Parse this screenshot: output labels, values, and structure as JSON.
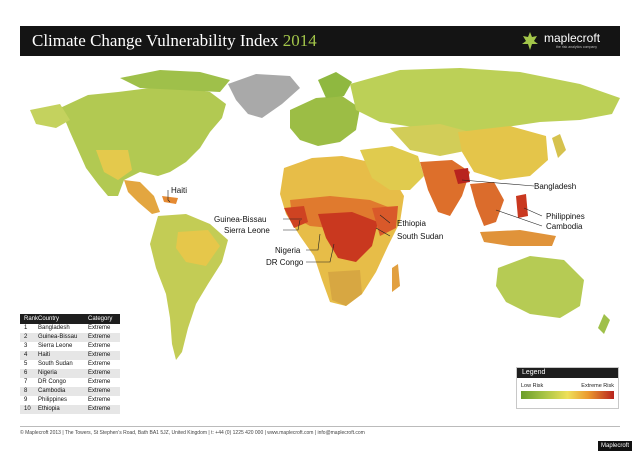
{
  "header": {
    "title_main": "Climate Change Vulnerability Index",
    "title_year": "2014",
    "brand": "maplecroft",
    "brand_tag": "the risk analytics company"
  },
  "map_labels": [
    {
      "id": "haiti",
      "text": "Haiti"
    },
    {
      "id": "guinea-bissau",
      "text": "Guinea-Bissau"
    },
    {
      "id": "sierra-leone",
      "text": "Sierra Leone"
    },
    {
      "id": "nigeria",
      "text": "Nigeria"
    },
    {
      "id": "dr-congo",
      "text": "DR Congo"
    },
    {
      "id": "ethiopia",
      "text": "Ethiopia"
    },
    {
      "id": "south-sudan",
      "text": "South Sudan"
    },
    {
      "id": "bangladesh",
      "text": "Bangladesh"
    },
    {
      "id": "philippines",
      "text": "Philippines"
    },
    {
      "id": "cambodia",
      "text": "Cambodia"
    }
  ],
  "table": {
    "headers": [
      "Rank",
      "Country",
      "Category"
    ],
    "rows": [
      [
        "1",
        "Bangladesh",
        "Extreme"
      ],
      [
        "2",
        "Guinea-Bissau",
        "Extreme"
      ],
      [
        "3",
        "Sierra Leone",
        "Extreme"
      ],
      [
        "4",
        "Haiti",
        "Extreme"
      ],
      [
        "5",
        "South Sudan",
        "Extreme"
      ],
      [
        "6",
        "Nigeria",
        "Extreme"
      ],
      [
        "7",
        "DR Congo",
        "Extreme"
      ],
      [
        "8",
        "Cambodia",
        "Extreme"
      ],
      [
        "9",
        "Philippines",
        "Extreme"
      ],
      [
        "10",
        "Ethiopia",
        "Extreme"
      ]
    ]
  },
  "legend": {
    "title": "Legend",
    "low": "Low Risk",
    "high": "Extreme Risk",
    "colors": [
      "#6a9d2a",
      "#a7c446",
      "#eee05a",
      "#eb9a2f",
      "#b8231e"
    ]
  },
  "footer": "© Maplecroft 2013 | The Towers, St Stephen’s Road, Bath BA1 5JZ, United Kingdom | t: +44 (0) 1225 420 000 | www.maplecroft.com | info@maplecroft.com",
  "credit": "Maplecroft"
}
